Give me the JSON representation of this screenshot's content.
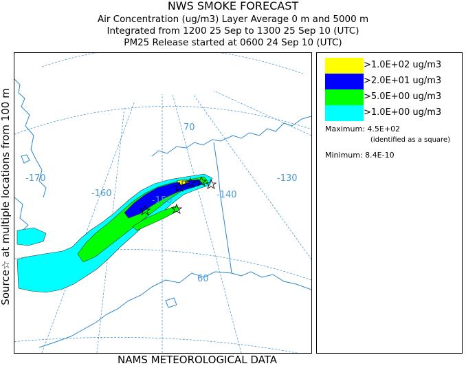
{
  "header": {
    "title": "NWS SMOKE FORECAST",
    "line2": "Air Concentration (ug/m3) Layer Average    0 m and  5000 m",
    "line3": "Integrated from 1200 25 Sep to 1300 25 Sep 10 (UTC)",
    "line4": "PM25 Release started at 0600 24 Sep 10 (UTC)"
  },
  "side_label": "Source☆   at multiple locations   from   100 m",
  "footer": "NAMS METEOROLOGICAL DATA",
  "map": {
    "graticule_labels": {
      "lat_70": "70",
      "lat_60": "60",
      "lon_m170": "-170",
      "lon_m160": "-160",
      "lon_m150": "-150",
      "lon_m140": "-140",
      "lon_m130": "-130"
    },
    "colors": {
      "graticule": "#4a9ad6",
      "coast": "#2a86cc",
      "fill_1": "#00ffff",
      "fill_5": "#00ff00",
      "fill_20": "#0000ff",
      "fill_100": "#ffff00",
      "contour": "#333333"
    }
  },
  "legend": {
    "items": [
      {
        "label": ">1.0E+02 ug/m3",
        "color": "#ffff00"
      },
      {
        "label": ">2.0E+01 ug/m3",
        "color": "#0000ff"
      },
      {
        "label": ">5.0E+00 ug/m3",
        "color": "#00ff00"
      },
      {
        "label": ">1.0E+00 ug/m3",
        "color": "#00ffff"
      }
    ],
    "maximum": "Maximum: 4.5E+02",
    "maximum_note": "(identified as a square)",
    "minimum": "Minimum: 8.4E-10"
  }
}
